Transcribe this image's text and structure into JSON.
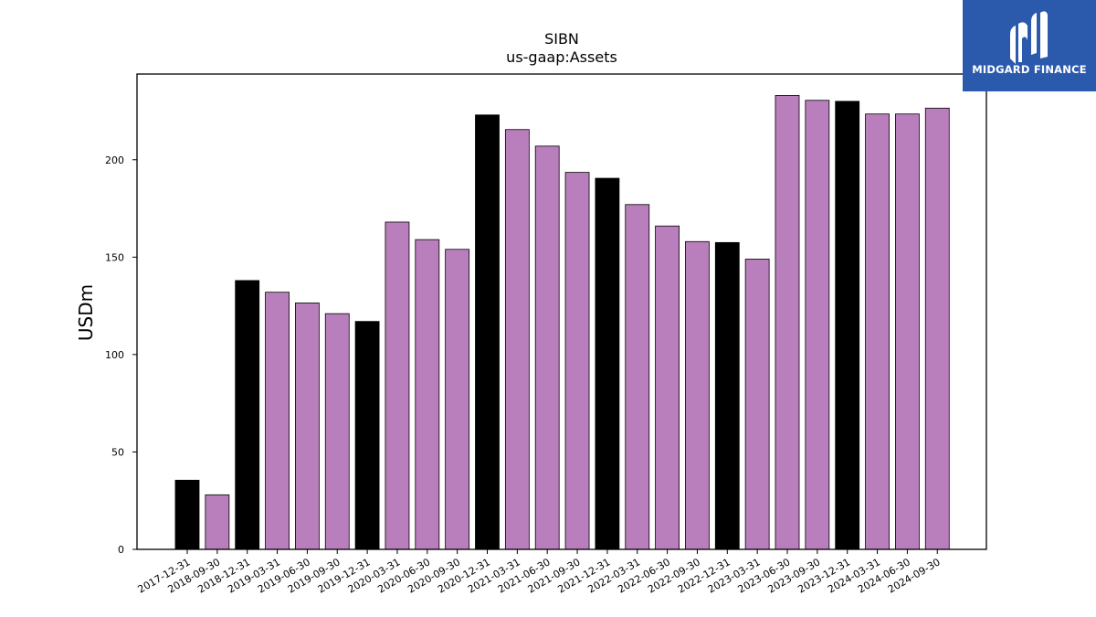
{
  "brand": {
    "name": "MIDGARD FINANCE"
  },
  "colors": {
    "annual": "#000000",
    "quarterly": "#b97fbc",
    "brand_bg": "#2b5aad"
  },
  "chart_data": {
    "type": "bar",
    "title": "SIBN",
    "subtitle": "us-gaap:Assets",
    "xlabel": "",
    "ylabel": "USDm",
    "ylim": [
      0,
      244
    ],
    "yticks": [
      0,
      50,
      100,
      150,
      200
    ],
    "grid": false,
    "categories": [
      "2017-12-31",
      "2018-09-30",
      "2018-12-31",
      "2019-03-31",
      "2019-06-30",
      "2019-09-30",
      "2019-12-31",
      "2020-03-31",
      "2020-06-30",
      "2020-09-30",
      "2020-12-31",
      "2021-03-31",
      "2021-06-30",
      "2021-09-30",
      "2021-12-31",
      "2022-03-31",
      "2022-06-30",
      "2022-09-30",
      "2022-12-31",
      "2023-03-31",
      "2023-06-30",
      "2023-09-30",
      "2023-12-31",
      "2024-03-31",
      "2024-06-30",
      "2024-09-30"
    ],
    "values": [
      35.5,
      28,
      138,
      132,
      126.5,
      121,
      117,
      168,
      159,
      154,
      223,
      215.5,
      207,
      193.5,
      190.5,
      177,
      166,
      158,
      157.5,
      149,
      233,
      230.5,
      230,
      223.5,
      223.5,
      226.5
    ],
    "period_type": [
      "annual",
      "quarterly",
      "annual",
      "quarterly",
      "quarterly",
      "quarterly",
      "annual",
      "quarterly",
      "quarterly",
      "quarterly",
      "annual",
      "quarterly",
      "quarterly",
      "quarterly",
      "annual",
      "quarterly",
      "quarterly",
      "quarterly",
      "annual",
      "quarterly",
      "quarterly",
      "quarterly",
      "annual",
      "quarterly",
      "quarterly",
      "quarterly"
    ]
  }
}
